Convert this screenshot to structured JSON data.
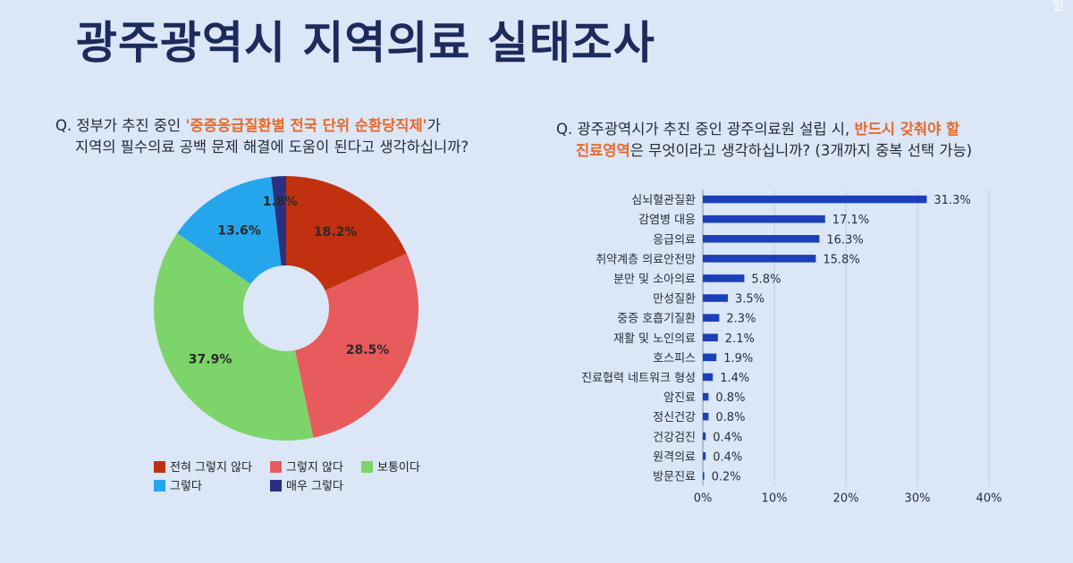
{
  "page": {
    "title": "광주광역시 지역의료 실태조사",
    "corner_mark": "일"
  },
  "left_question": {
    "prefix": "Q. 정부가 추진 중인 ",
    "highlight": "'중증응급질환별 전국 단위 순환당직제'",
    "suffix": "가",
    "line2": "지역의 필수의료 공백 문제 해결에 도움이 된다고 생각하십니까?"
  },
  "right_question": {
    "prefix": "Q. 광주광역시가 추진 중인 광주의료원 설립 시, ",
    "highlight1": "반드시 갖춰야 할",
    "highlight2": "진료영역",
    "line2_suffix": "은 무엇이라고 생각하십니까? (3개까지 중복 선택 가능)"
  },
  "colors": {
    "title": "#1c2a5c",
    "highlight": "#e8692a",
    "bar": "#1a3fb8",
    "background": "#dbe6f7"
  },
  "chart_data": [
    {
      "type": "pie",
      "slices": [
        {
          "label": "전혀 그렇지 않다",
          "value": 18.2,
          "display": "18.2%",
          "color": "#c1310f"
        },
        {
          "label": "그렇지 않다",
          "value": 28.5,
          "display": "28.5%",
          "color": "#e85b5d"
        },
        {
          "label": "보통이다",
          "value": 37.9,
          "display": "37.9%",
          "color": "#7dd46a"
        },
        {
          "label": "그렇다",
          "value": 13.6,
          "display": "13.6%",
          "color": "#25a6ec"
        },
        {
          "label": "매우 그렇다",
          "value": 1.8,
          "display": "1.8%",
          "color": "#2b3180"
        }
      ],
      "donut": true,
      "legend_position": "bottom"
    },
    {
      "type": "bar",
      "orientation": "horizontal",
      "categories": [
        "심뇌혈관질환",
        "감염병 대응",
        "응급의료",
        "취약계층 의료안전망",
        "분만 및 소아의료",
        "만성질환",
        "중증 호흡기질환",
        "재활 및 노인의료",
        "호스피스",
        "진료협력 네트워크 형성",
        "암진료",
        "정신건강",
        "건강검진",
        "원격의료",
        "방문진료"
      ],
      "values": [
        31.3,
        17.1,
        16.3,
        15.8,
        5.8,
        3.5,
        2.3,
        2.1,
        1.9,
        1.4,
        0.8,
        0.8,
        0.4,
        0.4,
        0.2
      ],
      "value_labels": [
        "31.3%",
        "17.1%",
        "16.3%",
        "15.8%",
        "5.8%",
        "3.5%",
        "2.3%",
        "2.1%",
        "1.9%",
        "1.4%",
        "0.8%",
        "0.8%",
        "0.4%",
        "0.4%",
        "0.2%"
      ],
      "x_ticks": [
        "0%",
        "10%",
        "20%",
        "30%",
        "40%"
      ],
      "xlim": [
        0,
        40
      ],
      "grid": true
    }
  ]
}
